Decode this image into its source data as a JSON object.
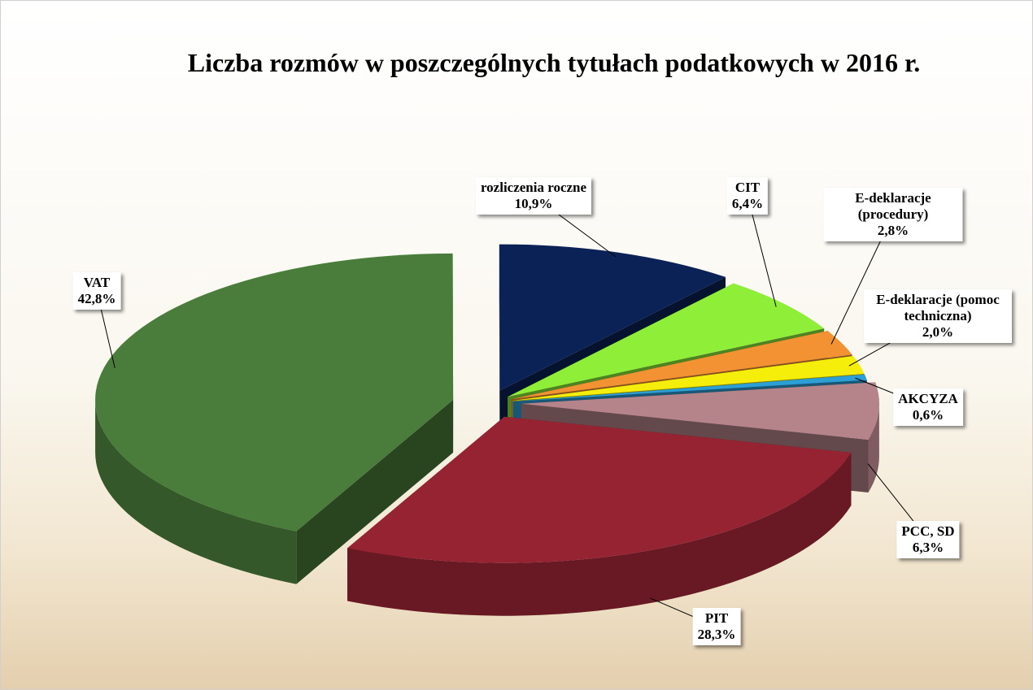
{
  "chart_data": {
    "type": "pie",
    "title": "Liczba rozmów w poszczególnych tytułach podatkowych w 2016 r.",
    "categories": [
      "VAT",
      "rozliczenia roczne",
      "CIT",
      "E-deklaracje (procedury)",
      "E-deklaracje (pomoc techniczna)",
      "AKCYZA",
      "PCC, SD",
      "PIT"
    ],
    "values": [
      42.8,
      10.9,
      6.4,
      2.8,
      2.0,
      0.6,
      6.3,
      28.3
    ],
    "value_labels": [
      "42,8%",
      "10,9%",
      "6,4%",
      "2,8%",
      "2,0%",
      "0,6%",
      "6,3%",
      "28,3%"
    ],
    "colors": [
      "#4a7d3b",
      "#0b2256",
      "#8fef38",
      "#f39232",
      "#f4ee0a",
      "#2b9fd6",
      "#b5848a",
      "#952332"
    ]
  }
}
